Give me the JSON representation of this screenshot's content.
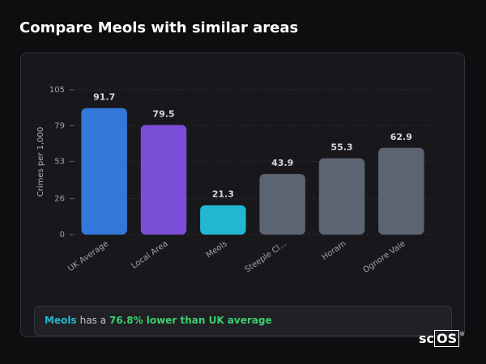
{
  "header": {
    "title": "Compare Meols with similar areas"
  },
  "chart_data": {
    "type": "bar",
    "y_label": "Crimes per 1,000",
    "categories": [
      "UK Average",
      "Local Area",
      "Meols",
      "Steeple Cl...",
      "Horam",
      "Ognore Vale"
    ],
    "values": [
      91.7,
      79.5,
      21.3,
      43.9,
      55.3,
      62.9
    ],
    "colors": [
      "#3478dc",
      "#7a4ed6",
      "#22b8cf",
      "#5c6472",
      "#5c6472",
      "#5c6472"
    ],
    "ylim": [
      0,
      105
    ],
    "yticks": [
      0,
      26,
      53,
      79,
      105
    ],
    "grid": true
  },
  "callout": {
    "area": "Meols",
    "middle": "has a",
    "highlight": "76.8% lower than UK average"
  },
  "logo": {
    "prefix": "sc",
    "boxed": "OS",
    "mark": "®"
  }
}
